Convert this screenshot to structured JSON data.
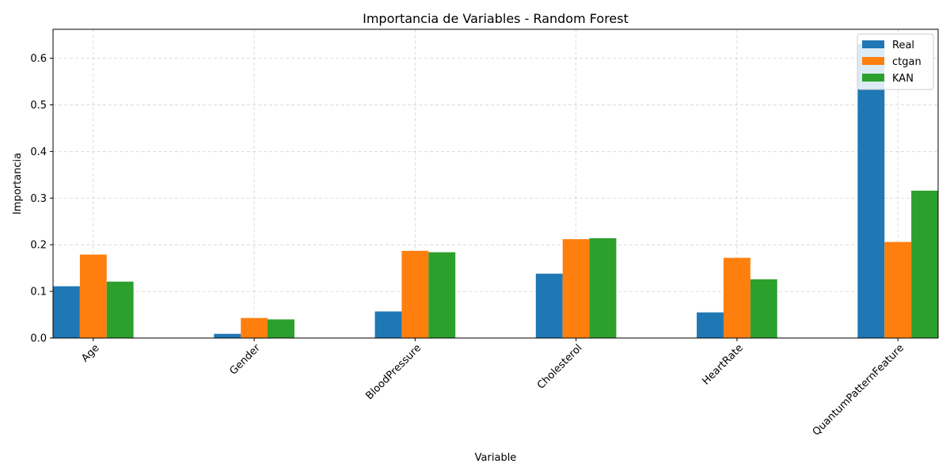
{
  "chart_data": {
    "type": "bar",
    "title": "Importancia de Variables - Random Forest",
    "xlabel": "Variable",
    "ylabel": "Importancia",
    "categories": [
      "Age",
      "Gender",
      "BloodPressure",
      "Cholesterol",
      "HeartRate",
      "QuantumPatternFeature"
    ],
    "series": [
      {
        "name": "Real",
        "color": "#1f77b4",
        "values": [
          0.111,
          0.009,
          0.057,
          0.138,
          0.055,
          0.63
        ]
      },
      {
        "name": "ctgan",
        "color": "#ff7f0e",
        "values": [
          0.179,
          0.043,
          0.187,
          0.212,
          0.172,
          0.206
        ]
      },
      {
        "name": "KAN",
        "color": "#2ca02c",
        "values": [
          0.121,
          0.04,
          0.184,
          0.214,
          0.126,
          0.316
        ]
      }
    ],
    "ylim": [
      0,
      0.662
    ],
    "yticks": [
      0.0,
      0.1,
      0.2,
      0.3,
      0.4,
      0.5,
      0.6
    ],
    "ytick_labels": [
      "0.0",
      "0.1",
      "0.2",
      "0.3",
      "0.4",
      "0.5",
      "0.6"
    ],
    "grid": true,
    "legend_position": "top-right"
  }
}
